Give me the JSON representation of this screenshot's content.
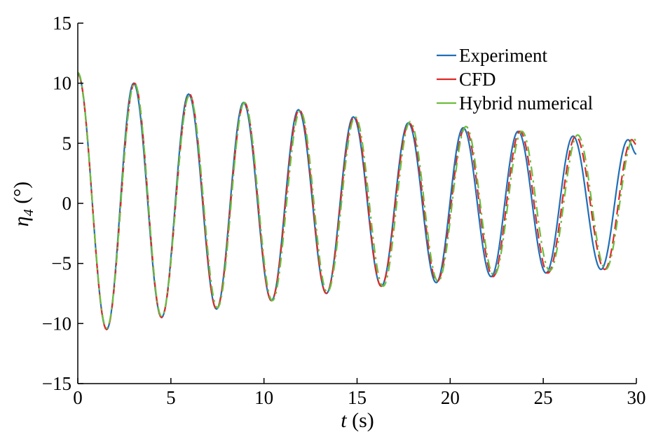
{
  "chart_data": {
    "type": "line",
    "xlabel": "t (s)",
    "xlabel_var": "t",
    "xlabel_unit": "(s)",
    "ylabel": "η4 (°)",
    "ylabel_var": "η",
    "ylabel_sub": "4",
    "ylabel_unit": "(°)",
    "xlim": [
      0,
      30
    ],
    "ylim": [
      -15,
      15
    ],
    "xticks": [
      0,
      5,
      10,
      15,
      20,
      25,
      30
    ],
    "yticks": [
      -15,
      -10,
      -5,
      0,
      5,
      10,
      15
    ],
    "xtick_labels": [
      "0",
      "5",
      "10",
      "15",
      "20",
      "25",
      "30"
    ],
    "ytick_labels": [
      "−15",
      "−10",
      "−5",
      "0",
      "5",
      "10",
      "15"
    ],
    "grid": false,
    "legend_position": "top-right",
    "series": [
      {
        "name": "Experiment",
        "color": "#1f6fb8",
        "style": "solid",
        "x": [
          0,
          1.55,
          3.0,
          4.5,
          5.95,
          7.45,
          8.9,
          10.4,
          11.85,
          13.35,
          14.8,
          16.3,
          17.75,
          19.25,
          20.7,
          22.2,
          23.65,
          25.15,
          26.6,
          28.1,
          29.55,
          30.0
        ],
        "y": [
          10.8,
          -10.5,
          10.0,
          -9.5,
          9.1,
          -8.8,
          8.4,
          -8.1,
          7.8,
          -7.5,
          7.2,
          -6.9,
          6.7,
          -6.6,
          6.3,
          -6.1,
          6.0,
          -5.8,
          5.6,
          -5.5,
          5.3,
          4.1
        ]
      },
      {
        "name": "CFD",
        "color": "#e02828",
        "style": "dashed",
        "x": [
          0,
          1.55,
          3.05,
          4.5,
          6.0,
          7.45,
          8.95,
          10.4,
          11.9,
          13.35,
          14.85,
          16.3,
          17.8,
          19.3,
          20.8,
          22.3,
          23.75,
          25.25,
          26.75,
          28.3,
          29.75,
          30.0
        ],
        "y": [
          10.8,
          -10.5,
          10.0,
          -9.5,
          9.1,
          -8.8,
          8.4,
          -8.1,
          7.8,
          -7.5,
          7.2,
          -6.9,
          6.7,
          -6.5,
          6.3,
          -6.1,
          6.0,
          -5.8,
          5.6,
          -5.5,
          5.3,
          4.9
        ]
      },
      {
        "name": "Hybrid numerical",
        "color": "#6cbd3e",
        "style": "dashdot",
        "x": [
          0,
          1.55,
          3.05,
          4.5,
          6.0,
          7.5,
          8.95,
          10.45,
          11.95,
          13.4,
          14.9,
          16.4,
          17.85,
          19.35,
          20.85,
          22.35,
          23.85,
          25.35,
          26.85,
          28.35,
          29.85,
          30.0
        ],
        "y": [
          10.9,
          -10.4,
          10.0,
          -9.4,
          9.0,
          -8.7,
          8.4,
          -8.1,
          7.7,
          -7.4,
          7.2,
          -6.9,
          6.8,
          -6.5,
          6.4,
          -6.0,
          6.0,
          -5.6,
          5.7,
          -5.5,
          5.4,
          5.2
        ]
      }
    ]
  }
}
